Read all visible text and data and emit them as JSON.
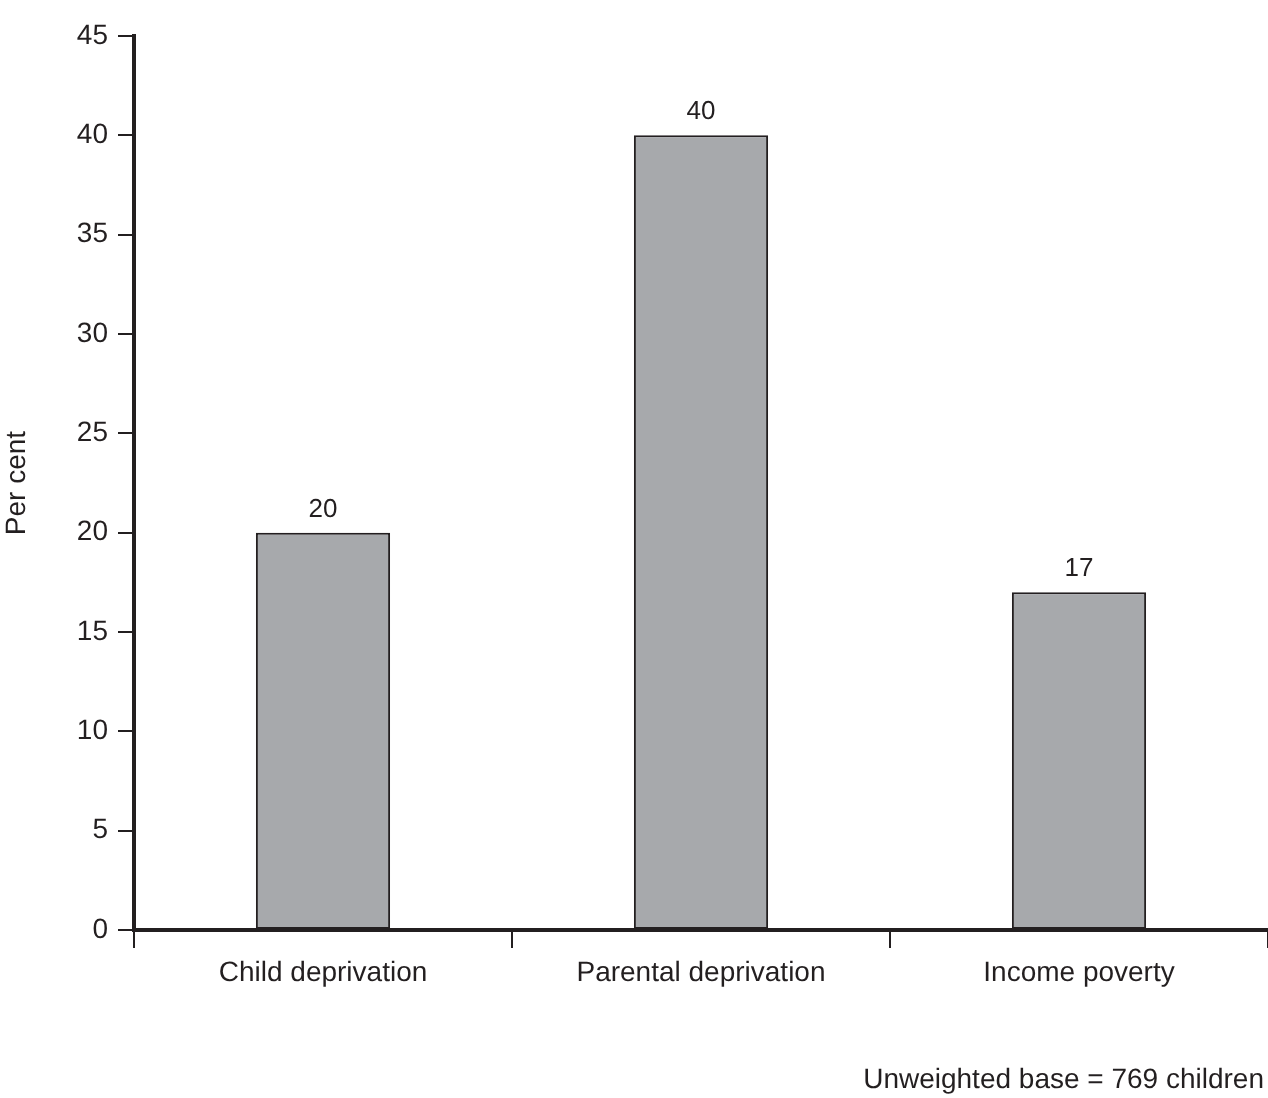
{
  "chart_data": {
    "type": "bar",
    "ylabel": "Per cent",
    "categories": [
      "Child deprivation",
      "Parental deprivation",
      "Income poverty"
    ],
    "values": [
      20,
      40,
      17
    ],
    "color": "#a7a9ac",
    "ylim": [
      0,
      45
    ],
    "yticks": [
      0,
      5,
      10,
      15,
      20,
      25,
      30,
      35,
      40,
      45
    ],
    "grid": false,
    "data_labels": true,
    "annotations": [
      "Unweighted base = 769 children"
    ]
  }
}
